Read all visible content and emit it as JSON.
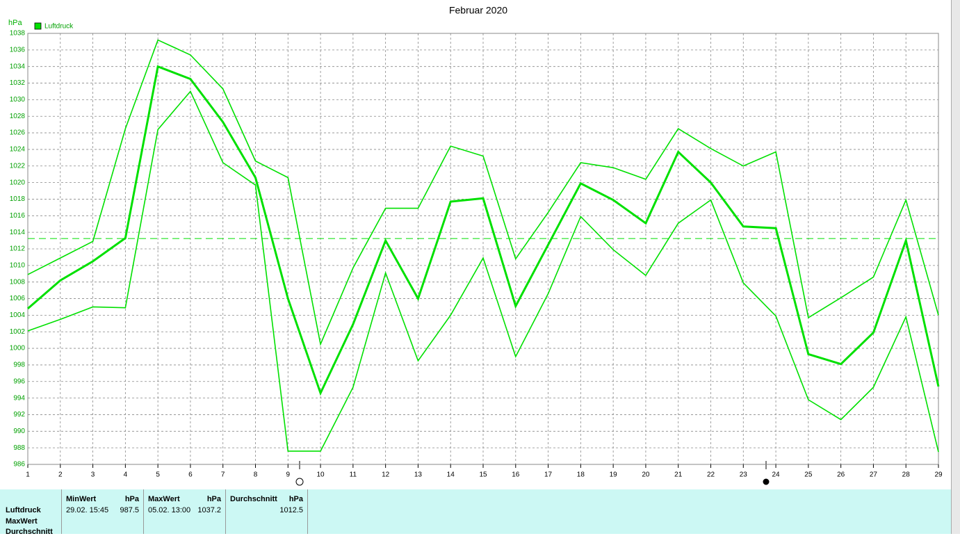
{
  "chart_data": {
    "type": "line",
    "title": "Februar 2020",
    "y_label": "hPa",
    "categories": [
      "1",
      "2",
      "3",
      "4",
      "5",
      "6",
      "7",
      "8",
      "9",
      "10",
      "11",
      "12",
      "13",
      "14",
      "15",
      "16",
      "17",
      "18",
      "19",
      "20",
      "21",
      "22",
      "23",
      "24",
      "25",
      "26",
      "27",
      "28",
      "29"
    ],
    "series": [
      {
        "name": "Luftdruck",
        "color": "#00e000",
        "width": 3,
        "values": [
          1004.8,
          1008.2,
          1010.5,
          1013.3,
          1034.0,
          1032.5,
          1027.3,
          1020.6,
          1006.0,
          994.6,
          1002.9,
          1013.0,
          1006.0,
          1017.7,
          1018.1,
          1005.1,
          1012.5,
          1019.9,
          1017.9,
          1015.1,
          1023.7,
          1020.0,
          1014.7,
          1014.5,
          999.3,
          998.1,
          1001.9,
          1013.0,
          995.4
        ]
      },
      {
        "color": "#00e000",
        "width": 1.6,
        "values": [
          1008.9,
          1010.9,
          1012.9,
          1026.5,
          1037.2,
          1035.4,
          1031.3,
          1022.6,
          1020.6,
          1000.5,
          1009.7,
          1016.9,
          1016.9,
          1024.4,
          1023.2,
          1010.8,
          1016.4,
          1022.4,
          1021.8,
          1020.4,
          1026.5,
          1024.1,
          1022.0,
          1023.7,
          1003.7,
          1006.1,
          1008.6,
          1017.9,
          1004.0
        ]
      },
      {
        "color": "#00e000",
        "width": 1.6,
        "values": [
          1002.1,
          1003.5,
          1005.0,
          1004.9,
          1026.4,
          1031.0,
          1022.4,
          1019.7,
          987.6,
          987.6,
          995.3,
          1009.1,
          998.5,
          1004.0,
          1010.9,
          999.0,
          1006.6,
          1015.9,
          1011.9,
          1008.8,
          1015.1,
          1017.9,
          1007.9,
          1003.9,
          993.8,
          991.4,
          995.3,
          1003.8,
          987.5
        ]
      }
    ],
    "reference_line": 1013.25,
    "ylim": [
      986,
      1038
    ],
    "yticks": [
      986,
      988,
      990,
      992,
      994,
      996,
      998,
      1000,
      1002,
      1004,
      1006,
      1008,
      1010,
      1012,
      1014,
      1016,
      1018,
      1020,
      1022,
      1024,
      1026,
      1028,
      1030,
      1032,
      1034,
      1036,
      1038
    ],
    "grid": true
  },
  "stats": {
    "row_labels": [
      "Luftdruck",
      "MaxWert",
      "Durchschnitt"
    ],
    "columns": [
      {
        "header": "MinWert",
        "unit": "hPa",
        "time": "29.02.  15:45",
        "value": "987.5"
      },
      {
        "header": "MaxWert",
        "unit": "hPa",
        "time": "05.02.  13:00",
        "value": "1037.2"
      },
      {
        "header": "Durchschnitt",
        "unit": "hPa",
        "value": "1012.5"
      }
    ]
  }
}
